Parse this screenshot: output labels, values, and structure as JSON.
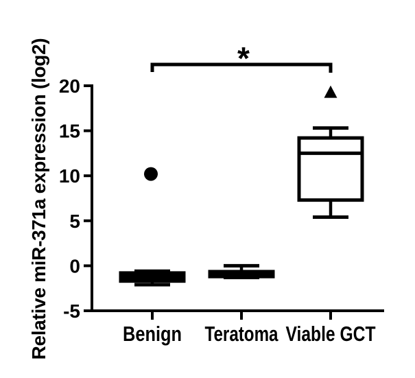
{
  "figure": {
    "background": "#ffffff",
    "ink_color": "#000000"
  },
  "chart_data": {
    "type": "box",
    "title": "",
    "xlabel": "",
    "ylabel": "Relative miR-371a expression (log2)",
    "ylim": [
      -5,
      20
    ],
    "yticks": [
      -5,
      0,
      5,
      10,
      15,
      20
    ],
    "categories": [
      "Benign",
      "Teratoma",
      "Viable GCT"
    ],
    "grid": false,
    "legend": null,
    "boxes": [
      {
        "category": "Benign",
        "whisker_low": -2.1,
        "q1": -1.7,
        "median": -1.2,
        "q3": -0.8,
        "whisker_high": -0.6,
        "fill": "solid",
        "outliers": [
          {
            "value": 10.2,
            "marker": "circle"
          }
        ]
      },
      {
        "category": "Teratoma",
        "whisker_low": -1.3,
        "q1": -1.2,
        "median": -0.9,
        "q3": -0.65,
        "whisker_high": 0,
        "fill": "solid",
        "outliers": []
      },
      {
        "category": "Viable GCT",
        "whisker_low": 5.4,
        "q1": 7.3,
        "median": 12.5,
        "q3": 14.2,
        "whisker_high": 15.3,
        "fill": "white",
        "outliers": [
          {
            "value": 19.3,
            "marker": "triangle"
          }
        ]
      }
    ],
    "significance": [
      {
        "from": "Benign",
        "to": "Viable GCT",
        "label": "*"
      }
    ]
  }
}
